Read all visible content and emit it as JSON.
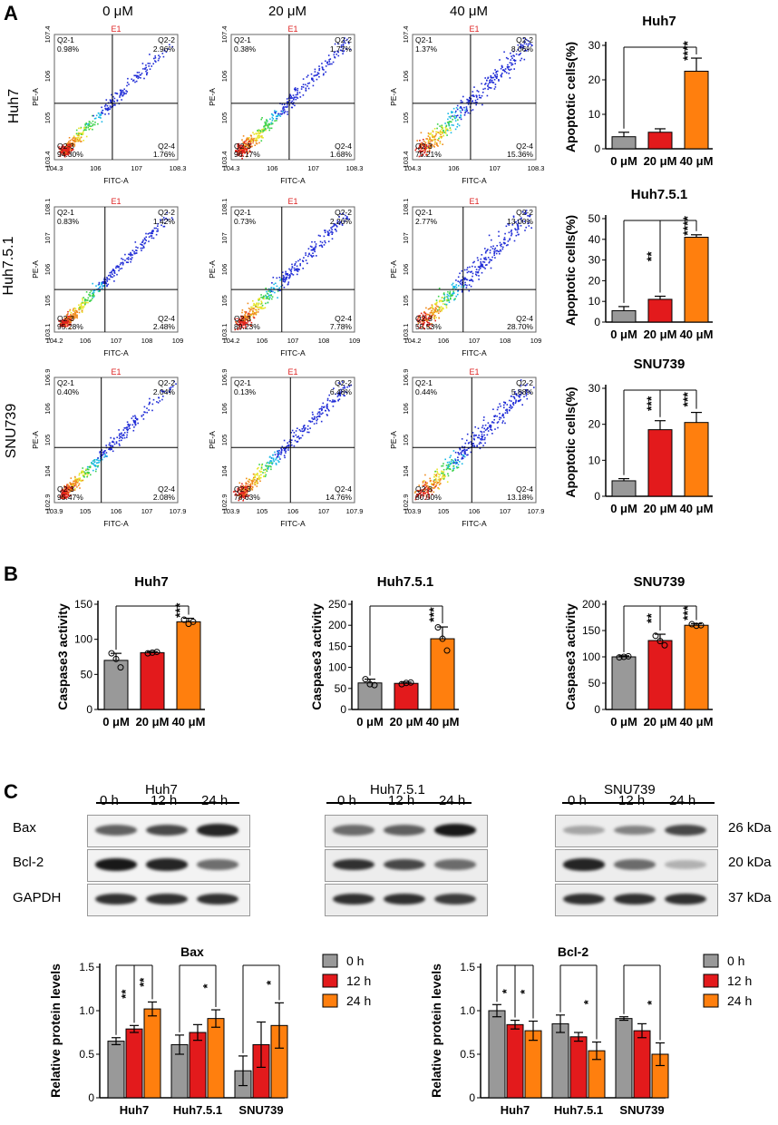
{
  "panels": {
    "A": "A",
    "B": "B",
    "C": "C"
  },
  "flow": {
    "columns": [
      "0 μM",
      "20 μM",
      "40 μM"
    ],
    "rows": [
      "Huh7",
      "Huh7.5.1",
      "SNU739"
    ],
    "gate": "E1",
    "xlabel": "FITC-A",
    "ylabel": "PE-A",
    "quadrant_labels": [
      "Q2-1",
      "Q2-2",
      "Q2-3",
      "Q2-4"
    ],
    "x_ticks": [
      [
        "10^4.3",
        "10^6",
        "10^7",
        "10^8.3"
      ],
      [
        "10^4.2",
        "10^6",
        "10^7",
        "10^8",
        "10^9"
      ],
      [
        "10^3.9",
        "10^5",
        "10^6",
        "10^7",
        "10^7.9"
      ]
    ],
    "y_ticks": [
      [
        "10^3.4",
        "10^5",
        "10^6",
        "10^7.4"
      ],
      [
        "10^3.1",
        "10^5",
        "10^6",
        "10^7",
        "10^8.1"
      ],
      [
        "10^2.9",
        "10^4",
        "10^5",
        "10^6",
        "10^6.9"
      ]
    ],
    "plots": [
      [
        [
          "0.98%",
          "2.96%",
          "94.30%",
          "1.76%"
        ],
        [
          "0.38%",
          "1.77%",
          "96.17%",
          "1.68%"
        ],
        [
          "1.37%",
          "8.06%",
          "75.21%",
          "15.36%"
        ]
      ],
      [
        [
          "0.83%",
          "1.42%",
          "95.28%",
          "2.48%"
        ],
        [
          "0.73%",
          "2.26%",
          "89.23%",
          "7.78%"
        ],
        [
          "2.77%",
          "13.00%",
          "55.53%",
          "28.70%"
        ]
      ],
      [
        [
          "0.40%",
          "2.04%",
          "95.47%",
          "2.08%"
        ],
        [
          "0.13%",
          "6.48%",
          "78.63%",
          "14.76%"
        ],
        [
          "0.44%",
          "5.88%",
          "80.50%",
          "13.18%"
        ]
      ]
    ]
  },
  "chart_data": [
    {
      "id": "apo-huh7",
      "type": "bar",
      "title": "Huh7",
      "ylabel": "Apoptotic cells(%)",
      "categories": [
        "0 μM",
        "20 μM",
        "40 μM"
      ],
      "values": [
        3.5,
        4.8,
        22.5
      ],
      "errors": [
        1.3,
        1.0,
        3.8
      ],
      "ylim": [
        0,
        30
      ],
      "yticks": [
        0,
        10,
        20,
        30
      ],
      "colors": [
        "#999999",
        "#e31a1c",
        "#ff7f0e"
      ],
      "sig": [
        {
          "from": 0,
          "to": 2,
          "label": "****"
        }
      ]
    },
    {
      "id": "apo-huh751",
      "type": "bar",
      "title": "Huh7.5.1",
      "ylabel": "Apoptotic cells(%)",
      "categories": [
        "0 μM",
        "20 μM",
        "40 μM"
      ],
      "values": [
        5.5,
        11,
        41
      ],
      "errors": [
        2,
        1.5,
        1.2
      ],
      "ylim": [
        0,
        50
      ],
      "yticks": [
        0,
        10,
        20,
        30,
        40,
        50
      ],
      "colors": [
        "#999999",
        "#e31a1c",
        "#ff7f0e"
      ],
      "sig": [
        {
          "from": 0,
          "to": 1,
          "label": "**"
        },
        {
          "from": 0,
          "to": 2,
          "label": "****"
        }
      ]
    },
    {
      "id": "apo-snu739",
      "type": "bar",
      "title": "SNU739",
      "ylabel": "Apoptotic cells(%)",
      "categories": [
        "0 μM",
        "20 μM",
        "40 μM"
      ],
      "values": [
        4.3,
        18.5,
        20.5
      ],
      "errors": [
        0.6,
        2.5,
        2.8
      ],
      "ylim": [
        0,
        30
      ],
      "yticks": [
        0,
        10,
        20,
        30
      ],
      "colors": [
        "#999999",
        "#e31a1c",
        "#ff7f0e"
      ],
      "sig": [
        {
          "from": 0,
          "to": 1,
          "label": "***"
        },
        {
          "from": 0,
          "to": 2,
          "label": "***"
        }
      ]
    },
    {
      "id": "casp-huh7",
      "type": "bar",
      "title": "Huh7",
      "ylabel": "Caspase3 activity",
      "categories": [
        "0 μM",
        "20 μM",
        "40 μM"
      ],
      "values": [
        70,
        81,
        125
      ],
      "errors": [
        10,
        1.5,
        5
      ],
      "points": [
        [
          80,
          72,
          60
        ],
        [
          80,
          81,
          82
        ],
        [
          128,
          122,
          125
        ]
      ],
      "ylim": [
        0,
        150
      ],
      "yticks": [
        0,
        50,
        100,
        150
      ],
      "colors": [
        "#999999",
        "#e31a1c",
        "#ff7f0e"
      ],
      "sig": [
        {
          "from": 0,
          "to": 2,
          "label": "***"
        }
      ]
    },
    {
      "id": "casp-huh751",
      "type": "bar",
      "title": "Huh7.5.1",
      "ylabel": "Caspase3 activity",
      "categories": [
        "0 μM",
        "20 μM",
        "40 μM"
      ],
      "values": [
        63,
        62,
        168
      ],
      "errors": [
        9,
        3,
        28
      ],
      "points": [
        [
          72,
          60,
          58
        ],
        [
          60,
          63,
          64
        ],
        [
          195,
          168,
          140
        ]
      ],
      "ylim": [
        0,
        250
      ],
      "yticks": [
        0,
        50,
        100,
        150,
        200,
        250
      ],
      "colors": [
        "#999999",
        "#e31a1c",
        "#ff7f0e"
      ],
      "sig": [
        {
          "from": 0,
          "to": 2,
          "label": "***"
        }
      ]
    },
    {
      "id": "casp-snu739",
      "type": "bar",
      "title": "SNU739",
      "ylabel": "Caspase3 activity",
      "categories": [
        "0 μM",
        "20 μM",
        "40 μM"
      ],
      "values": [
        100,
        131,
        160
      ],
      "errors": [
        2,
        12,
        3
      ],
      "points": [
        [
          99,
          100,
          101
        ],
        [
          140,
          130,
          122
        ],
        [
          162,
          159,
          160
        ]
      ],
      "ylim": [
        0,
        200
      ],
      "yticks": [
        0,
        50,
        100,
        150,
        200
      ],
      "colors": [
        "#999999",
        "#e31a1c",
        "#ff7f0e"
      ],
      "sig": [
        {
          "from": 0,
          "to": 1,
          "label": "**"
        },
        {
          "from": 0,
          "to": 2,
          "label": "***"
        }
      ]
    },
    {
      "id": "bax",
      "type": "bar",
      "title": "Bax",
      "ylabel": "Relative protein levels",
      "categories": [
        "Huh7",
        "Huh7.5.1",
        "SNU739"
      ],
      "series": [
        {
          "name": "0 h",
          "values": [
            0.65,
            0.61,
            0.31
          ],
          "errors": [
            0.04,
            0.11,
            0.17
          ]
        },
        {
          "name": "12 h",
          "values": [
            0.79,
            0.75,
            0.61
          ],
          "errors": [
            0.04,
            0.09,
            0.26
          ]
        },
        {
          "name": "24 h",
          "values": [
            1.02,
            0.91,
            0.83
          ],
          "errors": [
            0.08,
            0.1,
            0.26
          ]
        }
      ],
      "ylim": [
        0,
        1.5
      ],
      "yticks": [
        0,
        0.5,
        1.0,
        1.5
      ],
      "colors": [
        "#999999",
        "#e31a1c",
        "#ff7f0e"
      ],
      "sig": [
        {
          "group": 0,
          "from": 0,
          "to": 1,
          "label": "**"
        },
        {
          "group": 0,
          "from": 0,
          "to": 2,
          "label": "**"
        },
        {
          "group": 1,
          "from": 0,
          "to": 2,
          "label": "*"
        },
        {
          "group": 2,
          "from": 0,
          "to": 2,
          "label": "*"
        }
      ]
    },
    {
      "id": "bcl2",
      "type": "bar",
      "title": "Bcl-2",
      "ylabel": "Relative protein levels",
      "categories": [
        "Huh7",
        "Huh7.5.1",
        "SNU739"
      ],
      "series": [
        {
          "name": "0 h",
          "values": [
            1.0,
            0.85,
            0.91
          ],
          "errors": [
            0.07,
            0.1,
            0.02
          ]
        },
        {
          "name": "12 h",
          "values": [
            0.84,
            0.7,
            0.77
          ],
          "errors": [
            0.05,
            0.05,
            0.08
          ]
        },
        {
          "name": "24 h",
          "values": [
            0.77,
            0.54,
            0.5
          ],
          "errors": [
            0.11,
            0.1,
            0.13
          ]
        }
      ],
      "ylim": [
        0,
        1.5
      ],
      "yticks": [
        0,
        0.5,
        1.0,
        1.5
      ],
      "colors": [
        "#999999",
        "#e31a1c",
        "#ff7f0e"
      ],
      "sig": [
        {
          "group": 0,
          "from": 0,
          "to": 1,
          "label": "*"
        },
        {
          "group": 0,
          "from": 0,
          "to": 2,
          "label": "*"
        },
        {
          "group": 1,
          "from": 0,
          "to": 2,
          "label": "*"
        },
        {
          "group": 2,
          "from": 0,
          "to": 2,
          "label": "*"
        }
      ]
    }
  ],
  "blot": {
    "cell_lines": [
      "Huh7",
      "Huh7.5.1",
      "SNU739"
    ],
    "timepoints": [
      "0 h",
      "12 h",
      "24 h"
    ],
    "proteins": [
      "Bax",
      "Bcl-2",
      "GAPDH"
    ],
    "sizes": [
      "26 kDa",
      "20 kDa",
      "37 kDa"
    ],
    "intensity": [
      [
        [
          0.6,
          0.7,
          0.85
        ],
        [
          0.9,
          0.85,
          0.55
        ],
        [
          0.8,
          0.8,
          0.8
        ]
      ],
      [
        [
          0.55,
          0.6,
          0.9
        ],
        [
          0.8,
          0.7,
          0.55
        ],
        [
          0.8,
          0.8,
          0.75
        ]
      ],
      [
        [
          0.3,
          0.45,
          0.7
        ],
        [
          0.85,
          0.55,
          0.25
        ],
        [
          0.8,
          0.8,
          0.8
        ]
      ]
    ]
  }
}
